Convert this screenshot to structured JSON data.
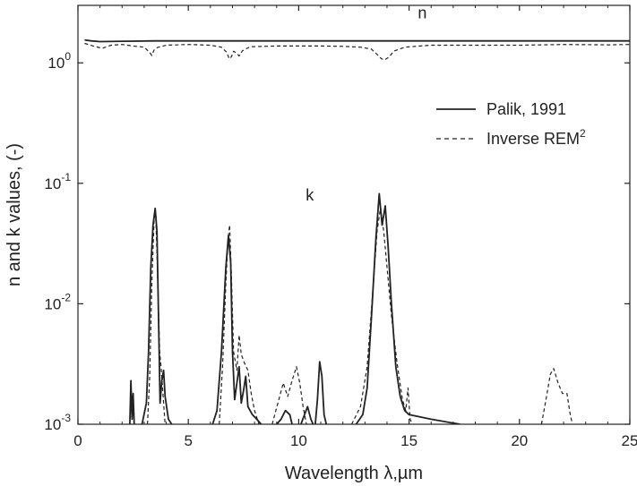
{
  "chart_data": {
    "type": "line",
    "title": "",
    "xlabel": "Wavelength λ,µm",
    "ylabel": "n and k values, (-)",
    "xlim": [
      0,
      25
    ],
    "ylim": [
      0.001,
      3.0
    ],
    "yscale": "log",
    "x_ticks": [
      0,
      5,
      10,
      15,
      20,
      25
    ],
    "x_tick_labels": [
      "0",
      "5",
      "10",
      "15",
      "20",
      "25"
    ],
    "y_ticks": [
      0.001,
      0.01,
      0.1,
      1
    ],
    "y_tick_labels": [
      {
        "base": "10",
        "exp": "-3"
      },
      {
        "base": "10",
        "exp": "-2"
      },
      {
        "base": "10",
        "exp": "-1"
      },
      {
        "base": "10",
        "exp": "0"
      }
    ],
    "annotations": [
      {
        "text": "n",
        "x": 15.6,
        "y": 2.35
      },
      {
        "text": "k",
        "x": 10.5,
        "y": 0.072
      }
    ],
    "legend": {
      "position": "upper-right",
      "entries": [
        {
          "label": "Palik, 1991",
          "style": "solid"
        },
        {
          "label": "Inverse REM",
          "superscript": "2",
          "style": "dashed"
        }
      ]
    },
    "series": [
      {
        "name": "Palik, 1991",
        "style": "solid",
        "color": "#222222",
        "segments": [
          [
            [
              0.3,
              1.55
            ],
            [
              0.6,
              1.52
            ],
            [
              1.0,
              1.5
            ],
            [
              2.0,
              1.51
            ],
            [
              3.5,
              1.52
            ],
            [
              7,
              1.52
            ],
            [
              10,
              1.52
            ],
            [
              14,
              1.52
            ],
            [
              18,
              1.52
            ],
            [
              22,
              1.52
            ],
            [
              25,
              1.52
            ]
          ],
          [
            [
              2.35,
              0.001
            ],
            [
              2.4,
              0.0023
            ],
            [
              2.45,
              0.0011
            ],
            [
              2.5,
              0.0018
            ],
            [
              2.55,
              0.001
            ]
          ],
          [
            [
              2.9,
              0.001
            ],
            [
              3.1,
              0.0015
            ],
            [
              3.2,
              0.004
            ],
            [
              3.3,
              0.02
            ],
            [
              3.4,
              0.045
            ],
            [
              3.5,
              0.062
            ],
            [
              3.58,
              0.04
            ],
            [
              3.65,
              0.008
            ],
            [
              3.72,
              0.0015
            ],
            [
              3.8,
              0.0023
            ],
            [
              3.88,
              0.0028
            ],
            [
              3.95,
              0.0017
            ],
            [
              4.1,
              0.0011
            ],
            [
              4.25,
              0.001
            ]
          ],
          [
            [
              6.1,
              0.001
            ],
            [
              6.3,
              0.0013
            ],
            [
              6.5,
              0.004
            ],
            [
              6.7,
              0.02
            ],
            [
              6.82,
              0.037
            ],
            [
              6.92,
              0.022
            ],
            [
              7.0,
              0.004
            ],
            [
              7.1,
              0.0016
            ],
            [
              7.2,
              0.0022
            ],
            [
              7.3,
              0.003
            ],
            [
              7.4,
              0.0015
            ],
            [
              7.5,
              0.0019
            ],
            [
              7.6,
              0.0025
            ],
            [
              7.7,
              0.0014
            ],
            [
              7.9,
              0.0012
            ],
            [
              8.1,
              0.0011
            ],
            [
              8.3,
              0.001
            ]
          ],
          [
            [
              9.0,
              0.001
            ],
            [
              9.2,
              0.0011
            ],
            [
              9.4,
              0.0013
            ],
            [
              9.6,
              0.0012
            ],
            [
              9.7,
              0.001
            ]
          ],
          [
            [
              10.1,
              0.001
            ],
            [
              10.4,
              0.0014
            ],
            [
              10.55,
              0.0011
            ],
            [
              10.65,
              0.001
            ]
          ],
          [
            [
              10.75,
              0.001
            ],
            [
              10.85,
              0.0016
            ],
            [
              10.95,
              0.0033
            ],
            [
              11.05,
              0.0025
            ],
            [
              11.15,
              0.0012
            ],
            [
              11.25,
              0.001
            ]
          ],
          [
            [
              12.6,
              0.001
            ],
            [
              12.9,
              0.0012
            ],
            [
              13.1,
              0.002
            ],
            [
              13.3,
              0.008
            ],
            [
              13.5,
              0.035
            ],
            [
              13.65,
              0.082
            ],
            [
              13.78,
              0.045
            ],
            [
              13.92,
              0.065
            ],
            [
              14.05,
              0.03
            ],
            [
              14.2,
              0.01
            ],
            [
              14.4,
              0.003
            ],
            [
              14.6,
              0.0017
            ],
            [
              14.8,
              0.0013
            ],
            [
              15.0,
              0.0012
            ],
            [
              16.0,
              0.0011
            ],
            [
              17.3,
              0.001
            ]
          ]
        ]
      },
      {
        "name": "Inverse REM2",
        "style": "dashed",
        "color": "#222222",
        "segments": [
          [
            [
              0.3,
              1.45
            ],
            [
              0.7,
              1.38
            ],
            [
              1.1,
              1.32
            ],
            [
              1.5,
              1.4
            ],
            [
              2.0,
              1.42
            ],
            [
              2.5,
              1.38
            ],
            [
              3.0,
              1.35
            ],
            [
              3.25,
              1.22
            ],
            [
              3.35,
              1.15
            ],
            [
              3.45,
              1.28
            ],
            [
              3.6,
              1.34
            ],
            [
              4.0,
              1.4
            ],
            [
              5,
              1.42
            ],
            [
              6,
              1.4
            ],
            [
              6.5,
              1.35
            ],
            [
              6.75,
              1.22
            ],
            [
              6.85,
              1.08
            ],
            [
              6.95,
              1.12
            ],
            [
              7.05,
              1.25
            ],
            [
              7.2,
              1.2
            ],
            [
              7.3,
              1.14
            ],
            [
              7.45,
              1.26
            ],
            [
              7.8,
              1.36
            ],
            [
              9,
              1.38
            ],
            [
              10,
              1.38
            ],
            [
              11,
              1.38
            ],
            [
              12,
              1.37
            ],
            [
              12.8,
              1.35
            ],
            [
              13.3,
              1.3
            ],
            [
              13.6,
              1.15
            ],
            [
              13.75,
              1.08
            ],
            [
              13.9,
              1.06
            ],
            [
              14.1,
              1.12
            ],
            [
              14.3,
              1.25
            ],
            [
              14.8,
              1.35
            ],
            [
              16,
              1.4
            ],
            [
              18,
              1.4
            ],
            [
              20,
              1.4
            ],
            [
              22,
              1.42
            ],
            [
              24,
              1.41
            ],
            [
              25,
              1.42
            ]
          ],
          [
            [
              3.15,
              0.001
            ],
            [
              3.25,
              0.0025
            ],
            [
              3.35,
              0.015
            ],
            [
              3.45,
              0.05
            ],
            [
              3.52,
              0.058
            ],
            [
              3.6,
              0.02
            ],
            [
              3.7,
              0.004
            ],
            [
              3.78,
              0.0028
            ],
            [
              3.88,
              0.0015
            ],
            [
              3.95,
              0.001
            ]
          ],
          [
            [
              6.4,
              0.001
            ],
            [
              6.55,
              0.003
            ],
            [
              6.7,
              0.015
            ],
            [
              6.8,
              0.035
            ],
            [
              6.87,
              0.045
            ],
            [
              6.95,
              0.018
            ],
            [
              7.05,
              0.004
            ],
            [
              7.2,
              0.0028
            ],
            [
              7.3,
              0.0055
            ],
            [
              7.4,
              0.0038
            ],
            [
              7.55,
              0.0032
            ],
            [
              7.7,
              0.0028
            ],
            [
              7.85,
              0.0018
            ],
            [
              8.0,
              0.0013
            ],
            [
              8.2,
              0.001
            ]
          ],
          [
            [
              8.8,
              0.001
            ],
            [
              9.1,
              0.0016
            ],
            [
              9.3,
              0.0022
            ],
            [
              9.5,
              0.0017
            ],
            [
              9.7,
              0.0023
            ],
            [
              9.9,
              0.003
            ],
            [
              10.05,
              0.0022
            ],
            [
              10.2,
              0.0014
            ],
            [
              10.35,
              0.001
            ]
          ],
          [
            [
              12.4,
              0.001
            ],
            [
              12.8,
              0.0014
            ],
            [
              13.1,
              0.003
            ],
            [
              13.35,
              0.012
            ],
            [
              13.55,
              0.04
            ],
            [
              13.7,
              0.062
            ],
            [
              13.85,
              0.04
            ],
            [
              14.0,
              0.02
            ],
            [
              14.2,
              0.008
            ],
            [
              14.45,
              0.0033
            ],
            [
              14.7,
              0.0016
            ],
            [
              14.85,
              0.0013
            ],
            [
              14.95,
              0.002
            ],
            [
              15.05,
              0.0011
            ],
            [
              15.15,
              0.001
            ]
          ],
          [
            [
              21.0,
              0.001
            ],
            [
              21.2,
              0.0016
            ],
            [
              21.4,
              0.0026
            ],
            [
              21.55,
              0.0029
            ],
            [
              21.75,
              0.0022
            ],
            [
              21.95,
              0.0018
            ],
            [
              22.15,
              0.0018
            ],
            [
              22.3,
              0.0012
            ],
            [
              22.4,
              0.001
            ]
          ]
        ]
      }
    ]
  }
}
